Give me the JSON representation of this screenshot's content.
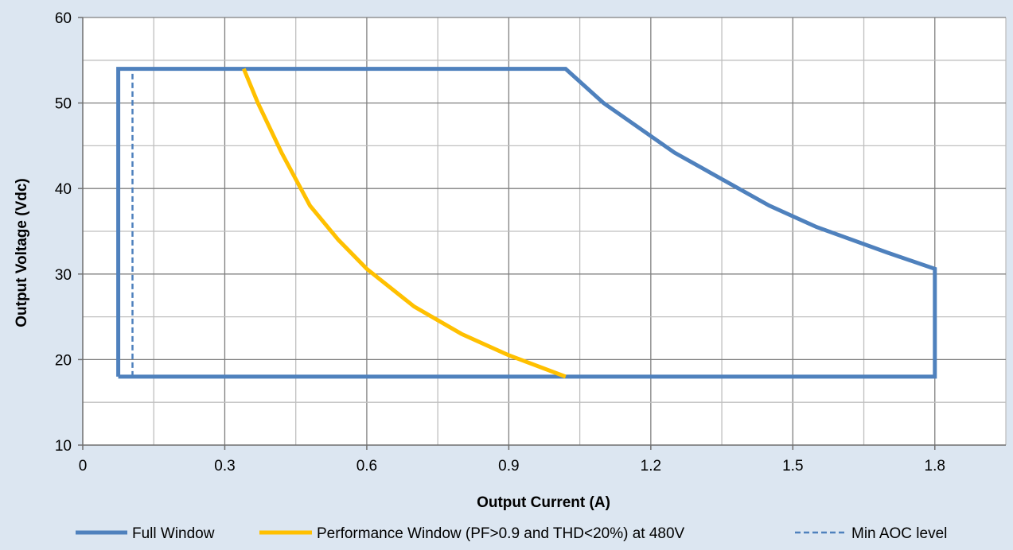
{
  "chart_data": {
    "type": "line",
    "xlabel": "Output Current (A)",
    "ylabel": "Output Voltage (Vdc)",
    "xlim": [
      0,
      1.95
    ],
    "ylim": [
      10,
      60
    ],
    "x_ticks": [
      "0",
      "0.3",
      "0.6",
      "0.9",
      "1.2",
      "1.5",
      "1.8"
    ],
    "y_ticks": [
      "10",
      "20",
      "30",
      "40",
      "50",
      "60"
    ],
    "x_tick_values": [
      0,
      0.3,
      0.6,
      0.9,
      1.2,
      1.5,
      1.8
    ],
    "y_tick_values": [
      10,
      20,
      30,
      40,
      50,
      60
    ],
    "grid": true,
    "legend_position": "bottom",
    "series": [
      {
        "name": "Full Window",
        "color": "#4f81bd",
        "style": "solid",
        "points": [
          [
            0.075,
            18
          ],
          [
            0.075,
            54
          ],
          [
            1.02,
            54
          ],
          [
            1.1,
            50
          ],
          [
            1.25,
            44.2
          ],
          [
            1.45,
            38
          ],
          [
            1.55,
            35.5
          ],
          [
            1.7,
            32.5
          ],
          [
            1.8,
            30.6
          ],
          [
            1.8,
            18
          ],
          [
            0.075,
            18
          ]
        ]
      },
      {
        "name": "Performance Window (PF>0.9 and THD<20%) at 480V",
        "color": "#ffc000",
        "style": "solid",
        "points": [
          [
            0.34,
            54
          ],
          [
            0.37,
            50
          ],
          [
            0.42,
            44.2
          ],
          [
            0.48,
            38
          ],
          [
            0.54,
            34
          ],
          [
            0.6,
            30.6
          ],
          [
            0.7,
            26.2
          ],
          [
            0.8,
            23
          ],
          [
            0.9,
            20.5
          ],
          [
            1.02,
            18
          ]
        ]
      },
      {
        "name": "Min AOC level",
        "color": "#4f81bd",
        "style": "dashed",
        "points": [
          [
            0.105,
            18
          ],
          [
            0.105,
            54
          ]
        ]
      }
    ]
  }
}
